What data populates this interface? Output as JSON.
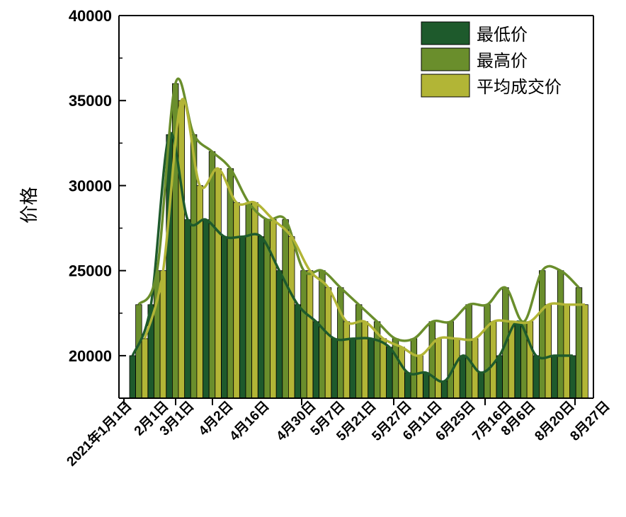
{
  "chart_data": {
    "type": "bar",
    "title": "",
    "xlabel": "",
    "ylabel": "价格",
    "ylim": [
      17500,
      40000
    ],
    "yticks": [
      20000,
      25000,
      30000,
      35000,
      40000
    ],
    "ytick_labels": [
      "20000",
      "25000",
      "30000",
      "35000",
      "40000"
    ],
    "x_tick_labels": [
      "2021年1月1日",
      "2月1日",
      "3月1日",
      "4月2日",
      "4月16日",
      "4月30日",
      "5月7日",
      "5月21日",
      "5月27日",
      "6月11日",
      "6月25日",
      "7月16日",
      "8月6日",
      "8月20日",
      "8月27日"
    ],
    "grid": false,
    "legend_position": "top-right",
    "series": [
      {
        "name": "最低价",
        "color": "#1e5a2c",
        "values": [
          20000,
          23000,
          33000,
          28000,
          28000,
          27000,
          27000,
          27000,
          25000,
          23000,
          22000,
          21000,
          21000,
          21000,
          20500,
          19000,
          19000,
          18500,
          20000,
          19000,
          20000,
          22000,
          20000,
          20000,
          20000
        ]
      },
      {
        "name": "最高价",
        "color": "#6a8e2c",
        "values": [
          23000,
          25000,
          36000,
          33000,
          32000,
          31000,
          29000,
          28000,
          28000,
          25000,
          25000,
          24000,
          23000,
          22000,
          21000,
          21000,
          22000,
          22000,
          23000,
          23000,
          24000,
          22000,
          25000,
          25000,
          24000
        ]
      },
      {
        "name": "平均成交价",
        "color": "#b2b536",
        "values": [
          21000,
          25000,
          35000,
          30000,
          31000,
          29000,
          29000,
          28000,
          27000,
          25000,
          24000,
          22000,
          22000,
          21000,
          20500,
          20000,
          21000,
          21000,
          21000,
          22000,
          22000,
          22000,
          23000,
          23000,
          23000
        ]
      }
    ]
  }
}
